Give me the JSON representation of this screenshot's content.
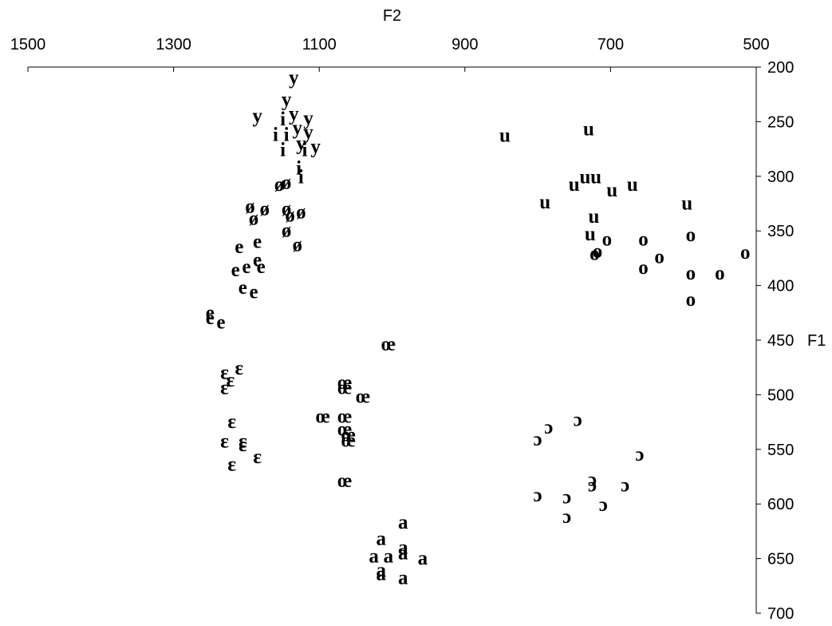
{
  "chart_data": {
    "type": "scatter",
    "xlabel": "F2",
    "ylabel": "F1",
    "xlim": [
      1500,
      500
    ],
    "ylim": [
      200,
      700
    ],
    "x_reversed": true,
    "y_reversed": true,
    "x_axis_position": "top",
    "y_axis_position": "right",
    "grid": false,
    "legend": "none",
    "xticks": [
      1500,
      1300,
      1100,
      900,
      700,
      500
    ],
    "yticks": [
      200,
      250,
      300,
      350,
      400,
      450,
      500,
      550,
      600,
      650,
      700
    ],
    "xtick_labels": [
      "1500",
      "1300",
      "1100",
      "900",
      "700",
      "500"
    ],
    "ytick_labels": [
      "200",
      "250",
      "300",
      "350",
      "400",
      "450",
      "500",
      "550",
      "600",
      "650",
      "700"
    ],
    "series": [
      {
        "marker": "y",
        "points": [
          {
            "x": 1135,
            "y": 210
          },
          {
            "x": 1145,
            "y": 230
          },
          {
            "x": 1185,
            "y": 245
          },
          {
            "x": 1135,
            "y": 243
          },
          {
            "x": 1115,
            "y": 247
          },
          {
            "x": 1130,
            "y": 256
          },
          {
            "x": 1115,
            "y": 260
          },
          {
            "x": 1125,
            "y": 270
          },
          {
            "x": 1105,
            "y": 273
          }
        ]
      },
      {
        "marker": "i",
        "points": [
          {
            "x": 1150,
            "y": 248
          },
          {
            "x": 1160,
            "y": 262
          },
          {
            "x": 1145,
            "y": 262
          },
          {
            "x": 1150,
            "y": 276
          },
          {
            "x": 1120,
            "y": 276
          },
          {
            "x": 1128,
            "y": 293
          },
          {
            "x": 1125,
            "y": 301
          }
        ]
      },
      {
        "marker": "u",
        "points": [
          {
            "x": 845,
            "y": 263
          },
          {
            "x": 730,
            "y": 257
          },
          {
            "x": 735,
            "y": 301
          },
          {
            "x": 720,
            "y": 301
          },
          {
            "x": 750,
            "y": 308
          },
          {
            "x": 698,
            "y": 313
          },
          {
            "x": 670,
            "y": 308
          },
          {
            "x": 790,
            "y": 324
          },
          {
            "x": 595,
            "y": 325
          },
          {
            "x": 723,
            "y": 337
          },
          {
            "x": 728,
            "y": 353
          }
        ]
      },
      {
        "marker": "o",
        "points": [
          {
            "x": 705,
            "y": 358
          },
          {
            "x": 655,
            "y": 358
          },
          {
            "x": 590,
            "y": 354
          },
          {
            "x": 515,
            "y": 370
          },
          {
            "x": 718,
            "y": 369
          },
          {
            "x": 722,
            "y": 371
          },
          {
            "x": 633,
            "y": 374
          },
          {
            "x": 655,
            "y": 384
          },
          {
            "x": 590,
            "y": 389
          },
          {
            "x": 550,
            "y": 389
          },
          {
            "x": 590,
            "y": 413
          }
        ]
      },
      {
        "marker": "ø",
        "points": [
          {
            "x": 1145,
            "y": 306
          },
          {
            "x": 1155,
            "y": 308
          },
          {
            "x": 1195,
            "y": 328
          },
          {
            "x": 1175,
            "y": 330
          },
          {
            "x": 1145,
            "y": 330
          },
          {
            "x": 1125,
            "y": 333
          },
          {
            "x": 1140,
            "y": 336
          },
          {
            "x": 1190,
            "y": 339
          },
          {
            "x": 1145,
            "y": 350
          },
          {
            "x": 1130,
            "y": 363
          }
        ]
      },
      {
        "marker": "e",
        "points": [
          {
            "x": 1185,
            "y": 360
          },
          {
            "x": 1210,
            "y": 365
          },
          {
            "x": 1185,
            "y": 377
          },
          {
            "x": 1200,
            "y": 383
          },
          {
            "x": 1180,
            "y": 383
          },
          {
            "x": 1215,
            "y": 386
          },
          {
            "x": 1205,
            "y": 402
          },
          {
            "x": 1190,
            "y": 406
          },
          {
            "x": 1250,
            "y": 425
          },
          {
            "x": 1250,
            "y": 430
          },
          {
            "x": 1235,
            "y": 434
          }
        ]
      },
      {
        "marker": "œ",
        "points": [
          {
            "x": 1005,
            "y": 454
          },
          {
            "x": 1065,
            "y": 489
          },
          {
            "x": 1065,
            "y": 494
          },
          {
            "x": 1040,
            "y": 502
          },
          {
            "x": 1095,
            "y": 520
          },
          {
            "x": 1065,
            "y": 520
          },
          {
            "x": 1065,
            "y": 532
          },
          {
            "x": 1060,
            "y": 537
          },
          {
            "x": 1060,
            "y": 542
          },
          {
            "x": 1065,
            "y": 579
          }
        ]
      },
      {
        "marker": "ɛ",
        "points": [
          {
            "x": 1210,
            "y": 476
          },
          {
            "x": 1230,
            "y": 480
          },
          {
            "x": 1222,
            "y": 487
          },
          {
            "x": 1230,
            "y": 494
          },
          {
            "x": 1220,
            "y": 525
          },
          {
            "x": 1230,
            "y": 543
          },
          {
            "x": 1205,
            "y": 543
          },
          {
            "x": 1205,
            "y": 546
          },
          {
            "x": 1185,
            "y": 557
          },
          {
            "x": 1220,
            "y": 564
          }
        ]
      },
      {
        "marker": "a",
        "points": [
          {
            "x": 985,
            "y": 617
          },
          {
            "x": 1015,
            "y": 632
          },
          {
            "x": 985,
            "y": 640
          },
          {
            "x": 985,
            "y": 645
          },
          {
            "x": 1025,
            "y": 648
          },
          {
            "x": 1005,
            "y": 648
          },
          {
            "x": 958,
            "y": 650
          },
          {
            "x": 1015,
            "y": 661
          },
          {
            "x": 1015,
            "y": 664
          },
          {
            "x": 985,
            "y": 668
          }
        ]
      },
      {
        "marker": "ɔ",
        "points": [
          {
            "x": 745,
            "y": 523
          },
          {
            "x": 785,
            "y": 530
          },
          {
            "x": 800,
            "y": 541
          },
          {
            "x": 660,
            "y": 555
          },
          {
            "x": 725,
            "y": 578
          },
          {
            "x": 725,
            "y": 583
          },
          {
            "x": 680,
            "y": 583
          },
          {
            "x": 800,
            "y": 592
          },
          {
            "x": 760,
            "y": 594
          },
          {
            "x": 710,
            "y": 601
          },
          {
            "x": 760,
            "y": 612
          }
        ]
      }
    ]
  },
  "colors": {
    "text": "#000000",
    "axis": "#000000",
    "background": "#ffffff"
  }
}
